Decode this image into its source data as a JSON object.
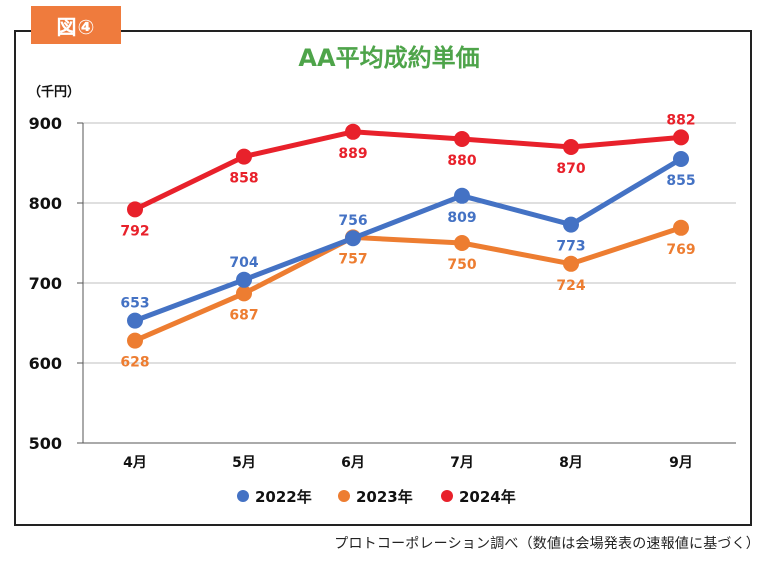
{
  "badge": "図④",
  "source": "プロトコーポレーション調べ（数値は会場発表の速報値に基づく）",
  "colors": {
    "2022年": "#4472c4",
    "2023年": "#ed7d31",
    "2024年": "#e8212b",
    "title": "#4ea44a"
  },
  "chart_data": {
    "type": "line",
    "title": "AA平均成約単価",
    "unit_label": "（千円）",
    "categories": [
      "4月",
      "5月",
      "6月",
      "7月",
      "8月",
      "9月"
    ],
    "ylim": [
      500,
      900
    ],
    "yticks": [
      500,
      600,
      700,
      800,
      900
    ],
    "grid": true,
    "legend": "bottom",
    "series": [
      {
        "name": "2022年",
        "values": [
          653,
          704,
          756,
          809,
          773,
          855
        ]
      },
      {
        "name": "2023年",
        "values": [
          628,
          687,
          757,
          750,
          724,
          769
        ]
      },
      {
        "name": "2024年",
        "values": [
          792,
          858,
          889,
          880,
          870,
          882
        ]
      }
    ]
  }
}
